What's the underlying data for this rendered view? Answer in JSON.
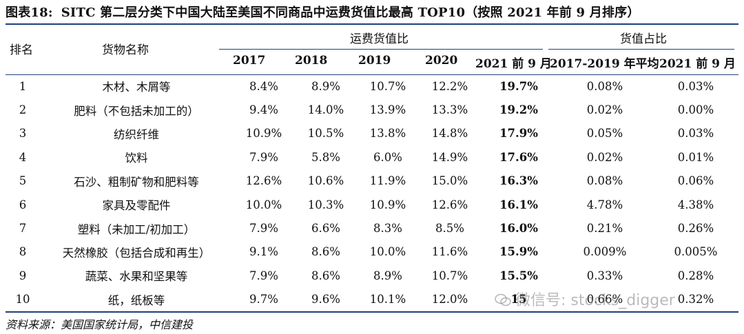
{
  "title": {
    "figure_label": "图表18:",
    "text": "SITC 第二层分类下中国大陆至美国不同商品中运费货值比最高 TOP10（按照 2021 年前 9 月排序）"
  },
  "header": {
    "rank": "排名",
    "name": "货物名称",
    "group_freight": "运费货值比",
    "group_share": "货值占比",
    "years": [
      "2017",
      "2018",
      "2019",
      "2020",
      "2021 前 9 月"
    ],
    "share_cols": [
      "2017-2019 年平均",
      "2021 前 9 月"
    ]
  },
  "rows": [
    {
      "rank": "1",
      "name": "木材、木屑等",
      "y2017": "8.4%",
      "y2018": "8.9%",
      "y2019": "10.7%",
      "y2020": "12.2%",
      "y2021": "19.7%",
      "avg": "0.08%",
      "s2021": "0.03%"
    },
    {
      "rank": "2",
      "name": "肥料（不包括未加工的）",
      "y2017": "9.4%",
      "y2018": "14.0%",
      "y2019": "13.9%",
      "y2020": "13.3%",
      "y2021": "19.2%",
      "avg": "0.02%",
      "s2021": "0.00%"
    },
    {
      "rank": "3",
      "name": "纺织纤维",
      "y2017": "10.9%",
      "y2018": "10.5%",
      "y2019": "13.8%",
      "y2020": "14.8%",
      "y2021": "17.9%",
      "avg": "0.05%",
      "s2021": "0.03%"
    },
    {
      "rank": "4",
      "name": "饮料",
      "y2017": "7.9%",
      "y2018": "5.8%",
      "y2019": "6.0%",
      "y2020": "14.9%",
      "y2021": "17.6%",
      "avg": "0.02%",
      "s2021": "0.01%"
    },
    {
      "rank": "5",
      "name": "石沙、粗制矿物和肥料等",
      "y2017": "12.6%",
      "y2018": "10.6%",
      "y2019": "11.9%",
      "y2020": "15.0%",
      "y2021": "16.3%",
      "avg": "0.08%",
      "s2021": "0.06%"
    },
    {
      "rank": "6",
      "name": "家具及零配件",
      "y2017": "10.0%",
      "y2018": "10.3%",
      "y2019": "10.9%",
      "y2020": "12.6%",
      "y2021": "16.1%",
      "avg": "4.78%",
      "s2021": "4.38%"
    },
    {
      "rank": "7",
      "name": "塑料（未加工/初加工）",
      "y2017": "7.9%",
      "y2018": "6.6%",
      "y2019": "8.3%",
      "y2020": "8.5%",
      "y2021": "16.0%",
      "avg": "0.21%",
      "s2021": "0.26%"
    },
    {
      "rank": "8",
      "name": "天然橡胶（包括合成和再生）",
      "y2017": "9.1%",
      "y2018": "8.6%",
      "y2019": "10.0%",
      "y2020": "11.6%",
      "y2021": "15.9%",
      "avg": "0.009%",
      "s2021": "0.005%"
    },
    {
      "rank": "9",
      "name": "蔬菜、水果和坚果等",
      "y2017": "7.9%",
      "y2018": "8.6%",
      "y2019": "8.9%",
      "y2020": "10.7%",
      "y2021": "15.5%",
      "avg": "0.33%",
      "s2021": "0.28%"
    },
    {
      "rank": "10",
      "name": "纸，纸板等",
      "y2017": "9.7%",
      "y2018": "9.6%",
      "y2019": "10.1%",
      "y2020": "12.0%",
      "y2021": "15",
      "avg": "0.66%",
      "s2021": "0.32%"
    }
  ],
  "source": "资料来源：美国国家统计局，中信建投",
  "watermark": "微信号: stocks_digger",
  "colors": {
    "rule": "#1f3f7a",
    "text": "#111111"
  }
}
